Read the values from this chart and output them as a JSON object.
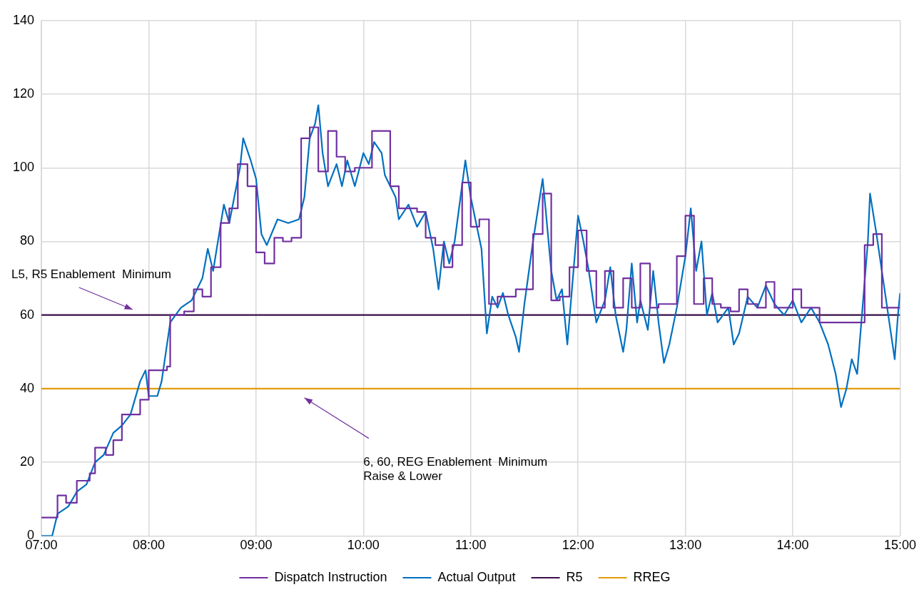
{
  "chart_data": {
    "type": "line",
    "xlim": [
      7,
      15
    ],
    "xticks": [
      {
        "value": 7,
        "label": "07:00"
      },
      {
        "value": 8,
        "label": "08:00"
      },
      {
        "value": 9,
        "label": "09:00"
      },
      {
        "value": 10,
        "label": "10:00"
      },
      {
        "value": 11,
        "label": "11:00"
      },
      {
        "value": 12,
        "label": "12:00"
      },
      {
        "value": 13,
        "label": "13:00"
      },
      {
        "value": 14,
        "label": "14:00"
      },
      {
        "value": 15,
        "label": "15:00"
      }
    ],
    "ylim": [
      0,
      140
    ],
    "yticks": [
      0,
      20,
      40,
      60,
      80,
      100,
      120,
      140
    ],
    "grid": true,
    "legend": "bottom",
    "marker": "none",
    "line_style": "solid",
    "annotations": [
      "L5, R5 Enablement  Minimum",
      "6, 60, REG Enablement  Minimum\nRaise & Lower"
    ],
    "series": [
      {
        "name": "Dispatch Instruction",
        "type": "step",
        "color": "#7030a0",
        "x": [
          7,
          7.15,
          7.23,
          7.33,
          7.45,
          7.5,
          7.6,
          7.67,
          7.75,
          7.92,
          8.0,
          8.17,
          8.2,
          8.33,
          8.42,
          8.5,
          8.58,
          8.67,
          8.75,
          8.83,
          8.92,
          9.0,
          9.08,
          9.17,
          9.25,
          9.33,
          9.42,
          9.5,
          9.58,
          9.67,
          9.75,
          9.83,
          9.92,
          10.08,
          10.25,
          10.33,
          10.5,
          10.58,
          10.67,
          10.75,
          10.83,
          10.92,
          11.0,
          11.08,
          11.17,
          11.25,
          11.42,
          11.58,
          11.67,
          11.75,
          11.83,
          11.92,
          12.0,
          12.08,
          12.17,
          12.25,
          12.33,
          12.42,
          12.5,
          12.58,
          12.67,
          12.75,
          12.92,
          13.0,
          13.08,
          13.17,
          13.25,
          13.33,
          13.42,
          13.5,
          13.58,
          13.67,
          13.75,
          13.83,
          14.0,
          14.08,
          14.25,
          14.67,
          14.75,
          14.83,
          15
        ],
        "values": [
          5,
          11,
          9,
          15,
          17,
          24,
          22,
          26,
          33,
          37,
          45,
          46,
          60,
          61,
          67,
          65,
          73,
          85,
          89,
          101,
          95,
          77,
          74,
          81,
          80,
          81,
          108,
          111,
          99,
          110,
          103,
          99,
          100,
          110,
          95,
          89,
          88,
          81,
          79,
          73,
          79,
          96,
          84,
          86,
          63,
          65,
          67,
          82,
          93,
          64,
          65,
          73,
          83,
          72,
          62,
          72,
          62,
          70,
          62,
          74,
          62,
          63,
          76,
          87,
          63,
          70,
          63,
          62,
          61,
          67,
          63,
          62,
          69,
          62,
          67,
          62,
          58,
          79,
          82,
          62,
          62
        ]
      },
      {
        "name": "Actual Output",
        "color": "#0070c0",
        "x": [
          7.0,
          7.1,
          7.15,
          7.25,
          7.33,
          7.42,
          7.5,
          7.58,
          7.67,
          7.75,
          7.83,
          7.92,
          7.97,
          8.0,
          8.08,
          8.12,
          8.2,
          8.25,
          8.3,
          8.4,
          8.5,
          8.55,
          8.6,
          8.7,
          8.75,
          8.85,
          8.88,
          8.95,
          9.0,
          9.05,
          9.1,
          9.2,
          9.3,
          9.4,
          9.45,
          9.5,
          9.55,
          9.58,
          9.62,
          9.67,
          9.75,
          9.8,
          9.85,
          9.92,
          10.0,
          10.05,
          10.1,
          10.17,
          10.2,
          10.3,
          10.33,
          10.42,
          10.5,
          10.58,
          10.65,
          10.7,
          10.75,
          10.8,
          10.85,
          10.95,
          11.0,
          11.05,
          11.1,
          11.15,
          11.2,
          11.25,
          11.3,
          11.35,
          11.42,
          11.45,
          11.5,
          11.58,
          11.67,
          11.7,
          11.75,
          11.8,
          11.85,
          11.9,
          12.0,
          12.05,
          12.1,
          12.17,
          12.25,
          12.3,
          12.35,
          12.42,
          12.45,
          12.5,
          12.55,
          12.58,
          12.65,
          12.7,
          12.75,
          12.8,
          12.85,
          12.92,
          13.0,
          13.05,
          13.1,
          13.15,
          13.2,
          13.25,
          13.3,
          13.4,
          13.45,
          13.5,
          13.58,
          13.67,
          13.75,
          13.83,
          13.92,
          14.0,
          14.08,
          14.17,
          14.25,
          14.33,
          14.4,
          14.45,
          14.5,
          14.55,
          14.6,
          14.65,
          14.7,
          14.72,
          14.78,
          14.85,
          14.9,
          14.95,
          14.98,
          15.0
        ],
        "values": [
          0,
          0,
          6,
          8,
          12,
          14,
          20,
          22,
          28,
          30,
          33,
          42,
          45,
          38,
          38,
          42,
          58,
          60,
          62,
          64,
          70,
          78,
          72,
          90,
          85,
          100,
          108,
          102,
          97,
          82,
          79,
          86,
          85,
          86,
          92,
          108,
          112,
          117,
          104,
          95,
          101,
          95,
          102,
          95,
          104,
          101,
          107,
          104,
          98,
          92,
          86,
          90,
          84,
          88,
          78,
          67,
          80,
          74,
          80,
          102,
          92,
          85,
          78,
          55,
          65,
          62,
          66,
          60,
          54,
          50,
          63,
          80,
          97,
          88,
          72,
          64,
          67,
          52,
          87,
          80,
          72,
          58,
          64,
          73,
          60,
          50,
          56,
          74,
          58,
          64,
          56,
          72,
          58,
          47,
          52,
          62,
          76,
          89,
          72,
          80,
          60,
          66,
          58,
          62,
          52,
          55,
          65,
          62,
          68,
          63,
          60,
          64,
          58,
          62,
          58,
          52,
          44,
          35,
          40,
          48,
          44,
          62,
          80,
          93,
          82,
          68,
          58,
          48,
          60,
          66
        ]
      },
      {
        "name": "R5",
        "color": "#3b1049",
        "x": [
          7,
          15
        ],
        "values": [
          60,
          60
        ]
      },
      {
        "name": "RREG",
        "color": "#e39c0d",
        "x": [
          7,
          15
        ],
        "values": [
          40,
          40
        ]
      }
    ]
  }
}
